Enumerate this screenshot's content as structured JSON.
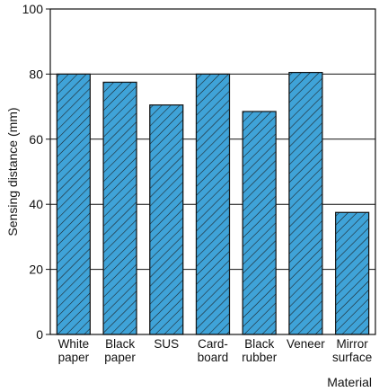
{
  "chart_data": {
    "type": "bar",
    "categories": [
      [
        "White",
        "paper"
      ],
      [
        "Black",
        "paper"
      ],
      [
        "SUS"
      ],
      [
        "Card-",
        "board"
      ],
      [
        "Black",
        "rubber"
      ],
      [
        "Veneer"
      ],
      [
        "Mirror",
        "surface"
      ]
    ],
    "values": [
      80,
      77.5,
      70.5,
      80,
      68.5,
      80.5,
      37.5
    ],
    "xlabel": "Material",
    "ylabel": "Sensing distance (mm)",
    "ylim": [
      0,
      100
    ],
    "yticks": [
      0,
      20,
      40,
      60,
      80,
      100
    ],
    "grid": true,
    "bar_fill": "#3fa3d8",
    "bar_hatch_color": "#1a1a1a"
  }
}
